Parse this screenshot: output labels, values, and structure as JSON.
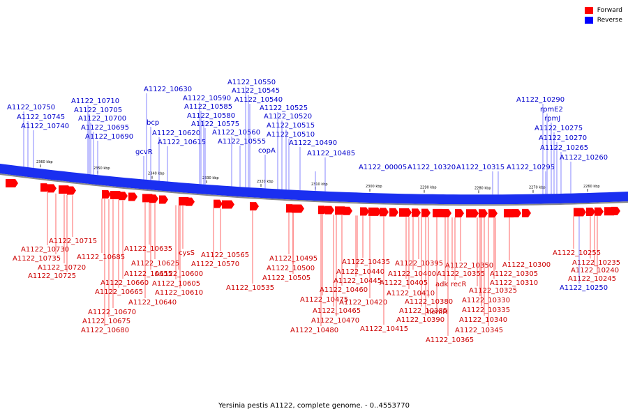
{
  "legend": {
    "forward_label": "Forward",
    "reverse_label": "Reverse",
    "forward_color": "#ff0000",
    "reverse_color": "#0000ff"
  },
  "caption": "Yersinia pestis A1122, complete genome. - 0..4553770",
  "colors": {
    "backbone": "#1a2ff0",
    "gene": "#ff0000",
    "forward_text": "#0000cc",
    "reverse_text": "#cc0000",
    "leader_forward": "#3333ff",
    "leader_reverse": "#ff0000"
  },
  "ticks": [
    "2360 kbp",
    "2350 kbp",
    "2340 kbp",
    "2330 kbp",
    "2320 kbp",
    "2310 kbp",
    "2300 kbp",
    "2290 kbp",
    "2280 kbp",
    "2270 kbp",
    "2260 kbp"
  ],
  "top_labels": [
    "A1122_10750",
    "A1122_10745",
    "A1122_10740",
    "A1122_10710",
    "A1122_10705",
    "A1122_10700",
    "A1122_10695",
    "A1122_10690",
    "bcp",
    "gcvR",
    "A1122_10630",
    "A1122_10620",
    "A1122_10615",
    "A1122_10590",
    "A1122_10585",
    "A1122_10580",
    "A1122_10575",
    "A1122_10560",
    "A1122_10555",
    "A1122_10550",
    "A1122_10545",
    "A1122_10540",
    "A1122_10525",
    "A1122_10520",
    "A1122_10515",
    "A1122_10510",
    "copA",
    "A1122_10490",
    "A1122_10485",
    "A1122_00005",
    "A1122_10320",
    "A1122_10315",
    "A1122_10295",
    "A1122_10290",
    "rpmE2",
    "rpmJ",
    "A1122_10275",
    "A1122_10270",
    "A1122_10265",
    "A1122_10260"
  ],
  "bottom_labels": [
    "A1122_10715",
    "A1122_10730",
    "A1122_10735",
    "A1122_10720",
    "A1122_10725",
    "A1122_10685",
    "A1122_10635",
    "cysS",
    "A1122_10625",
    "A1122_10655",
    "A1122_10600",
    "A1122_10660",
    "A1122_10605",
    "A1122_10665",
    "A1122_10610",
    "A1122_10640",
    "A1122_10670",
    "A1122_10675",
    "A1122_10680",
    "A1122_10565",
    "A1122_10570",
    "A1122_10535",
    "A1122_10495",
    "A1122_10500",
    "A1122_10505",
    "A1122_10475",
    "A1122_10465",
    "A1122_10470",
    "A1122_10480",
    "A1122_10460",
    "A1122_10445",
    "A1122_10440",
    "A1122_10435",
    "A1122_10420",
    "A1122_10415",
    "A1122_10410",
    "A1122_10405",
    "A1122_10400",
    "A1122_10395",
    "A1122_10385",
    "A1122_10390",
    "A1122_10380",
    "hemH",
    "adk",
    "recR",
    "A1122_10355",
    "A1122_10350",
    "A1122_10365",
    "A1122_10325",
    "A1122_10330",
    "A1122_10335",
    "A1122_10340",
    "A1122_10345",
    "A1122_10310",
    "A1122_10305",
    "A1122_10300",
    "A1122_10255",
    "A1122_10235",
    "A1122_10240",
    "A1122_10245",
    "A1122_10250"
  ]
}
